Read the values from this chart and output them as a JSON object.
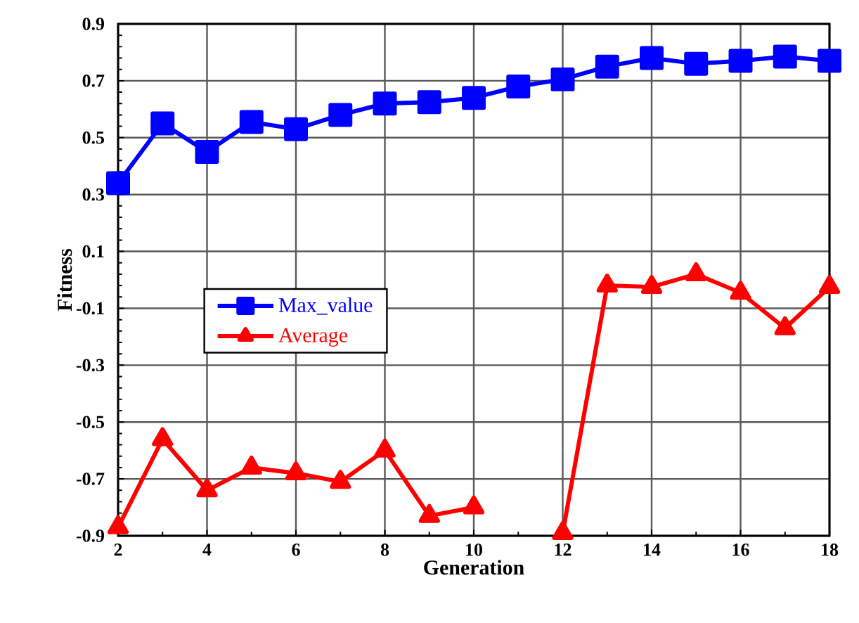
{
  "chart_data": {
    "type": "line",
    "xlabel": "Generation",
    "ylabel": "Fitness",
    "x": [
      2,
      3,
      4,
      5,
      6,
      7,
      8,
      9,
      10,
      11,
      12,
      13,
      14,
      15,
      16,
      17,
      18
    ],
    "series": [
      {
        "name": "Max_value",
        "color": "#0000ff",
        "marker": "square",
        "values": [
          0.34,
          0.55,
          0.45,
          0.555,
          0.53,
          0.58,
          0.62,
          0.625,
          0.64,
          0.68,
          0.705,
          0.75,
          0.78,
          0.76,
          0.77,
          0.785,
          0.77
        ]
      },
      {
        "name": "Average",
        "color": "#ff0000",
        "marker": "triangle",
        "values": [
          -0.87,
          -0.56,
          -0.74,
          -0.66,
          -0.68,
          -0.71,
          -0.6,
          -0.83,
          -0.8,
          null,
          -0.89,
          -0.02,
          -0.025,
          0.02,
          -0.045,
          -0.17,
          -0.025
        ]
      }
    ],
    "xlim": [
      2,
      18
    ],
    "ylim": [
      -0.9,
      0.9
    ],
    "xticks": [
      2,
      4,
      6,
      8,
      10,
      12,
      14,
      16,
      18
    ],
    "yticks": [
      {
        "value": 0.9,
        "label": "0.9"
      },
      {
        "value": 0.7,
        "label": "0.7"
      },
      {
        "value": 0.5,
        "label": "0.5"
      },
      {
        "value": 0.3,
        "label": "0.3"
      },
      {
        "value": 0.1,
        "label": "0.1"
      },
      {
        "value": -0.1,
        "label": "-0.1"
      },
      {
        "value": -0.3,
        "label": "-0.3"
      },
      {
        "value": -0.5,
        "label": "-0.5"
      },
      {
        "value": -0.7,
        "label": "-0.7"
      },
      {
        "value": -0.9,
        "label": "-0.9"
      }
    ],
    "grid": true,
    "legend": "left"
  }
}
